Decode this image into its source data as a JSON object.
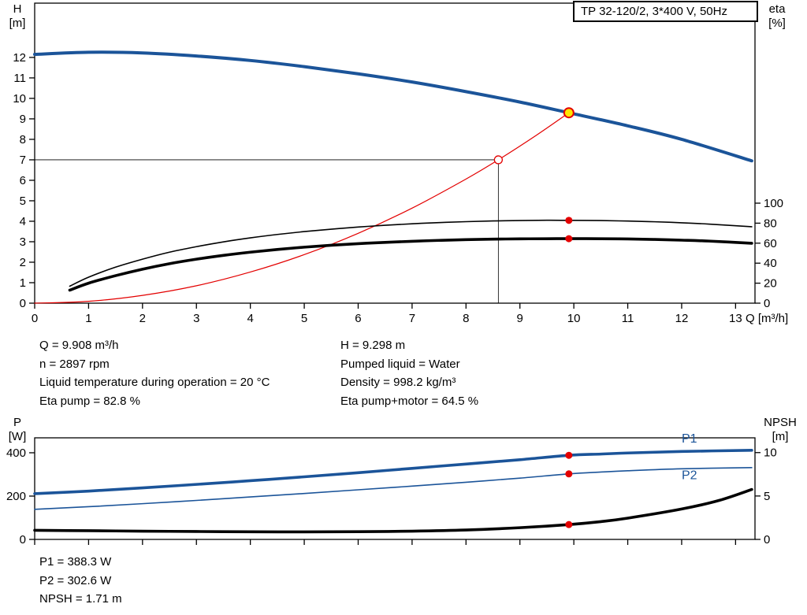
{
  "title_box": {
    "label": "TP 32-120/2, 3*400 V, 50Hz"
  },
  "axis_labels": {
    "h": "H",
    "h_unit": "[m]",
    "eta": "eta",
    "eta_unit": "[%]",
    "q": "Q [m³/h]",
    "p": "P",
    "p_unit": "[W]",
    "npsh": "NPSH",
    "npsh_unit": "[m]"
  },
  "operating_point_info": {
    "left_column": [
      "Q = 9.908 m³/h",
      "n = 2897 rpm",
      "Liquid temperature during operation = 20 °C",
      "Eta pump = 82.8 %"
    ],
    "right_column": [
      "H = 9.298 m",
      "Pumped liquid = Water",
      "Density = 998.2 kg/m³",
      "Eta pump+motor = 64.5 %"
    ]
  },
  "power_info": [
    "P1 = 388.3 W",
    "P2 = 302.6 W",
    "NPSH = 1.71 m"
  ],
  "colors": {
    "blue": "#1b5499",
    "red": "#e30000",
    "yellow": "#ffe600",
    "black": "#000000",
    "white": "#ffffff"
  },
  "chart_data": [
    {
      "id": "hq-chart",
      "type": "line",
      "title": "TP 32-120/2, 3*400 V, 50Hz",
      "x": {
        "label": "Q [m³/h]",
        "min": 0,
        "max": 13.36,
        "ticks": [
          0,
          1,
          2,
          3,
          4,
          5,
          6,
          7,
          8,
          9,
          10,
          11,
          12,
          13
        ],
        "show_tick_labels": true
      },
      "y_left": {
        "label": "H [m]",
        "min": 0,
        "max": 14.65,
        "ticks": [
          0,
          1,
          2,
          3,
          4,
          5,
          6,
          7,
          8,
          9,
          10,
          11,
          12
        ]
      },
      "y_right": {
        "label": "eta [%]",
        "min": 0,
        "max": 300,
        "ticks": [
          0,
          20,
          40,
          60,
          80,
          100
        ]
      },
      "series": [
        {
          "name": "pump-curve-hq",
          "axis": "left",
          "color_key": "blue",
          "width": 4,
          "points": [
            [
              0,
              12.15
            ],
            [
              1,
              12.25
            ],
            [
              2,
              12.22
            ],
            [
              3,
              12.07
            ],
            [
              4,
              11.85
            ],
            [
              5,
              11.55
            ],
            [
              6,
              11.2
            ],
            [
              7,
              10.8
            ],
            [
              8,
              10.33
            ],
            [
              9,
              9.82
            ],
            [
              9.908,
              9.298
            ],
            [
              11,
              8.66
            ],
            [
              12,
              8.0
            ],
            [
              13.3,
              6.95
            ]
          ]
        },
        {
          "name": "system-curve",
          "axis": "left",
          "color_key": "red",
          "width": 1.2,
          "points": [
            [
              0,
              0
            ],
            [
              1,
              0.09
            ],
            [
              2,
              0.38
            ],
            [
              3,
              0.85
            ],
            [
              4,
              1.52
            ],
            [
              5,
              2.37
            ],
            [
              6,
              3.41
            ],
            [
              7,
              4.64
            ],
            [
              8,
              6.06
            ],
            [
              8.6,
              7.0
            ],
            [
              9.3,
              8.19
            ],
            [
              9.908,
              9.298
            ]
          ]
        },
        {
          "name": "eta-pump-curve",
          "axis": "right",
          "color_key": "black",
          "width": 1.6,
          "points": [
            [
              0.65,
              17
            ],
            [
              1,
              26
            ],
            [
              1.5,
              36
            ],
            [
              2,
              44
            ],
            [
              2.5,
              51
            ],
            [
              3,
              56.5
            ],
            [
              3.5,
              61.3
            ],
            [
              4,
              65.3
            ],
            [
              4.5,
              68.7
            ],
            [
              5,
              71.6
            ],
            [
              5.5,
              74
            ],
            [
              6,
              76.1
            ],
            [
              6.5,
              77.9
            ],
            [
              7,
              79.4
            ],
            [
              7.5,
              80.6
            ],
            [
              8,
              81.5
            ],
            [
              8.5,
              82.2
            ],
            [
              9,
              82.6
            ],
            [
              9.5,
              82.9
            ],
            [
              9.908,
              82.8
            ],
            [
              10.5,
              82.6
            ],
            [
              11,
              82.1
            ],
            [
              11.5,
              81.4
            ],
            [
              12,
              80.4
            ],
            [
              12.5,
              79.1
            ],
            [
              13.3,
              76.4
            ]
          ]
        },
        {
          "name": "eta-pump-motor-curve",
          "axis": "right",
          "color_key": "black",
          "width": 3.6,
          "points": [
            [
              0.65,
              13
            ],
            [
              1,
              20
            ],
            [
              1.5,
              27.5
            ],
            [
              2,
              34
            ],
            [
              2.5,
              39.5
            ],
            [
              3,
              44
            ],
            [
              3.5,
              47.8
            ],
            [
              4,
              51
            ],
            [
              4.5,
              53.7
            ],
            [
              5,
              56
            ],
            [
              5.5,
              57.9
            ],
            [
              6,
              59.5
            ],
            [
              6.5,
              60.8
            ],
            [
              7,
              61.9
            ],
            [
              7.5,
              62.8
            ],
            [
              8,
              63.5
            ],
            [
              8.5,
              64
            ],
            [
              9,
              64.3
            ],
            [
              9.5,
              64.45
            ],
            [
              9.908,
              64.5
            ],
            [
              10.5,
              64.45
            ],
            [
              11,
              64.2
            ],
            [
              11.5,
              63.7
            ],
            [
              12,
              63
            ],
            [
              12.5,
              62.1
            ],
            [
              13.3,
              59.9
            ]
          ]
        }
      ],
      "guides": [
        {
          "type": "hline",
          "y": 7,
          "x_from": 0,
          "x_to": 8.6
        },
        {
          "type": "vline",
          "x": 8.6,
          "y_from": 0,
          "y_to": 7
        }
      ],
      "markers": [
        {
          "name": "duty-point",
          "x": 9.908,
          "y": 9.298,
          "axis": "left",
          "r": 6,
          "fill_key": "yellow",
          "stroke_key": "red",
          "stroke_width": 2
        },
        {
          "name": "rated-point",
          "x": 8.6,
          "y": 7,
          "axis": "left",
          "r": 5,
          "fill_key": "white",
          "stroke_key": "red",
          "stroke_width": 1.3
        },
        {
          "name": "eta-pump-point",
          "x": 9.908,
          "y": 82.8,
          "axis": "right",
          "r": 4.5,
          "fill_key": "red"
        },
        {
          "name": "eta-pump-motor-point",
          "x": 9.908,
          "y": 64.5,
          "axis": "right",
          "r": 4.5,
          "fill_key": "red"
        }
      ],
      "text_labels": []
    },
    {
      "id": "power-npsh-chart",
      "type": "line",
      "title": "",
      "x": {
        "label": "",
        "min": 0,
        "max": 13.36,
        "ticks": [
          0,
          1,
          2,
          3,
          4,
          5,
          6,
          7,
          8,
          9,
          10,
          11,
          12,
          13
        ],
        "show_tick_labels": false
      },
      "y_left": {
        "label": "P [W]",
        "min": 0,
        "max": 469,
        "ticks": [
          0,
          200,
          400
        ]
      },
      "y_right": {
        "label": "NPSH [m]",
        "min": 0,
        "max": 11.7,
        "ticks": [
          0,
          5,
          10
        ]
      },
      "series": [
        {
          "name": "p1-curve",
          "axis": "left",
          "color_key": "blue",
          "width": 3.6,
          "points": [
            [
              0,
              211
            ],
            [
              1,
              223
            ],
            [
              2,
              238
            ],
            [
              3,
              254
            ],
            [
              4,
              271
            ],
            [
              5,
              289
            ],
            [
              6,
              308
            ],
            [
              7,
              328
            ],
            [
              8,
              348
            ],
            [
              9,
              368
            ],
            [
              9.908,
              388.3
            ],
            [
              10.5,
              394
            ],
            [
              11,
              399
            ],
            [
              12,
              406
            ],
            [
              13.3,
              411.5
            ]
          ]
        },
        {
          "name": "p2-curve",
          "axis": "left",
          "color_key": "blue",
          "width": 1.6,
          "points": [
            [
              0,
              139
            ],
            [
              1,
              151
            ],
            [
              2,
              165
            ],
            [
              3,
              180
            ],
            [
              4,
              196
            ],
            [
              5,
              212
            ],
            [
              6,
              229
            ],
            [
              7,
              246
            ],
            [
              8,
              264
            ],
            [
              9,
              283
            ],
            [
              9.908,
              302.6
            ],
            [
              10.5,
              311
            ],
            [
              11,
              317
            ],
            [
              12,
              326
            ],
            [
              13.3,
              331.5
            ]
          ]
        },
        {
          "name": "npsh-curve",
          "axis": "right",
          "color_key": "black",
          "width": 3.6,
          "points": [
            [
              0,
              1.05
            ],
            [
              1,
              1.0
            ],
            [
              2,
              0.95
            ],
            [
              3,
              0.91
            ],
            [
              4,
              0.88
            ],
            [
              5,
              0.87
            ],
            [
              6,
              0.89
            ],
            [
              7,
              0.95
            ],
            [
              8,
              1.08
            ],
            [
              9,
              1.35
            ],
            [
              9.908,
              1.71
            ],
            [
              10.5,
              2.05
            ],
            [
              11,
              2.45
            ],
            [
              12,
              3.5
            ],
            [
              12.7,
              4.5
            ],
            [
              13.3,
              5.75
            ]
          ]
        }
      ],
      "guides": [],
      "markers": [
        {
          "name": "p1-duty-point",
          "x": 9.908,
          "y": 388.3,
          "axis": "left",
          "r": 4.5,
          "fill_key": "red"
        },
        {
          "name": "p2-duty-point",
          "x": 9.908,
          "y": 302.6,
          "axis": "left",
          "r": 4.5,
          "fill_key": "red"
        },
        {
          "name": "npsh-duty-point",
          "x": 9.908,
          "y": 1.71,
          "axis": "right",
          "r": 4.5,
          "fill_key": "red"
        }
      ],
      "text_labels": [
        {
          "name": "p1-series-label",
          "text": "P1",
          "x": 12.0,
          "y": 448,
          "axis": "left",
          "color_key": "blue"
        },
        {
          "name": "p2-series-label",
          "text": "P2",
          "x": 12.0,
          "y": 278,
          "axis": "left",
          "color_key": "blue"
        }
      ]
    }
  ]
}
